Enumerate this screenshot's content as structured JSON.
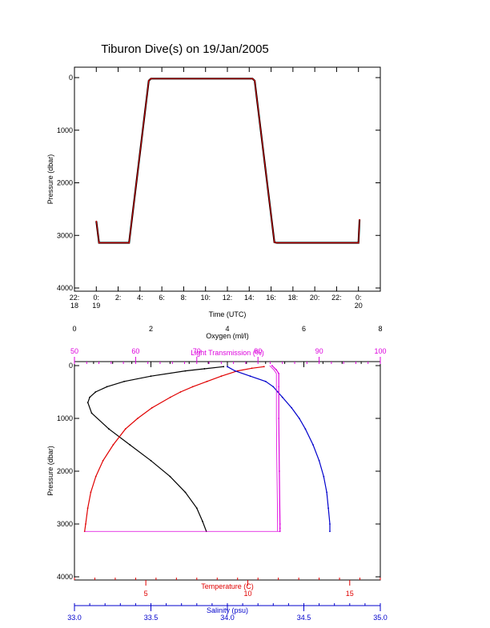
{
  "title": "Tiburon Dive(s) on 19/Jan/2005",
  "colors": {
    "axis": "#000000",
    "pressure_trace": "#cc0000",
    "oxygen": "#000000",
    "temperature": "#e00000",
    "salinity": "#0000cc",
    "light_transmission": "#dd00dd"
  },
  "chart_data": [
    {
      "type": "line",
      "name": "pressure-vs-time",
      "xlabel": "Time (UTC)",
      "ylabel": "Pressure (dbar)",
      "xlim": [
        -2,
        26
      ],
      "ylim": [
        4000,
        0
      ],
      "x_ticks": [
        {
          "x": -2,
          "line1": "22:",
          "line2": "18"
        },
        {
          "x": 0,
          "line1": "0:",
          "line2": "19"
        },
        {
          "x": 2,
          "line1": "2:",
          "line2": ""
        },
        {
          "x": 4,
          "line1": "4:",
          "line2": ""
        },
        {
          "x": 6,
          "line1": "6:",
          "line2": ""
        },
        {
          "x": 8,
          "line1": "8:",
          "line2": ""
        },
        {
          "x": 10,
          "line1": "10:",
          "line2": ""
        },
        {
          "x": 12,
          "line1": "12:",
          "line2": ""
        },
        {
          "x": 14,
          "line1": "14:",
          "line2": ""
        },
        {
          "x": 16,
          "line1": "16:",
          "line2": ""
        },
        {
          "x": 18,
          "line1": "18:",
          "line2": ""
        },
        {
          "x": 20,
          "line1": "20:",
          "line2": ""
        },
        {
          "x": 22,
          "line1": "22:",
          "line2": ""
        },
        {
          "x": 24,
          "line1": "0:",
          "line2": "20"
        }
      ],
      "y_ticks": [
        0,
        1000,
        2000,
        3000,
        4000
      ],
      "x": [
        0.0,
        0.25,
        3.0,
        4.8,
        5.0,
        14.3,
        14.5,
        16.3,
        16.5,
        24.0,
        24.1
      ],
      "y": [
        2730,
        3140,
        3140,
        60,
        20,
        20,
        60,
        3130,
        3140,
        3140,
        2700
      ]
    },
    {
      "type": "line",
      "name": "profiles",
      "ylabel": "Pressure (dbar)",
      "ylim": [
        4000,
        0
      ],
      "y_ticks": [
        0,
        1000,
        2000,
        3000,
        4000
      ],
      "axes": [
        {
          "key": "oxygen",
          "label": "Oxygen (ml/l)",
          "position": "top",
          "range": [
            0,
            8
          ],
          "ticks": [
            0,
            2,
            4,
            6,
            8
          ]
        },
        {
          "key": "light_transmission",
          "label": "Light Transmission (%)",
          "position": "top-inner",
          "range": [
            50,
            100
          ],
          "ticks": [
            50,
            60,
            70,
            80,
            90,
            100
          ]
        },
        {
          "key": "temperature",
          "label": "Temperature (C)",
          "position": "bottom",
          "range": [
            1.5,
            16.5
          ],
          "ticks": [
            5,
            10,
            15
          ]
        },
        {
          "key": "salinity",
          "label": "Salinity (psu)",
          "position": "bottom-outer",
          "range": [
            33.0,
            35.0
          ],
          "ticks": [
            "33.0",
            "33.5",
            "34.0",
            "34.5",
            "35.0"
          ]
        }
      ],
      "series": [
        {
          "key": "oxygen",
          "pressure": [
            20,
            60,
            100,
            200,
            300,
            400,
            500,
            600,
            700,
            900,
            1200,
            1500,
            1800,
            2100,
            2400,
            2700,
            2950,
            3140
          ],
          "values": [
            3.9,
            3.4,
            2.9,
            2.0,
            1.3,
            0.85,
            0.55,
            0.4,
            0.35,
            0.45,
            0.9,
            1.45,
            2.0,
            2.5,
            2.9,
            3.2,
            3.35,
            3.45
          ]
        },
        {
          "key": "temperature",
          "pressure": [
            20,
            50,
            100,
            200,
            300,
            400,
            500,
            600,
            800,
            1000,
            1200,
            1500,
            1800,
            2100,
            2400,
            2700,
            3000,
            3140
          ],
          "values": [
            10.8,
            10.2,
            9.5,
            8.7,
            8.0,
            7.3,
            6.7,
            6.2,
            5.3,
            4.6,
            4.0,
            3.4,
            2.9,
            2.55,
            2.3,
            2.15,
            2.05,
            2.0
          ]
        },
        {
          "key": "salinity",
          "pressure": [
            20,
            100,
            200,
            300,
            400,
            500,
            600,
            800,
            1000,
            1200,
            1500,
            1800,
            2100,
            2400,
            2700,
            3000,
            3140
          ],
          "values": [
            34.0,
            34.05,
            34.15,
            34.25,
            34.3,
            34.33,
            34.36,
            34.42,
            34.47,
            34.51,
            34.56,
            34.6,
            34.63,
            34.65,
            34.66,
            34.67,
            34.67
          ]
        },
        {
          "key": "light_transmission",
          "pressure": [
            0,
            80,
            150,
            400,
            1000,
            2000,
            3000,
            3080,
            3140
          ],
          "values": [
            82.3,
            83.0,
            83.4,
            83.4,
            83.4,
            83.5,
            83.6,
            83.6,
            83.6
          ]
        }
      ]
    }
  ]
}
